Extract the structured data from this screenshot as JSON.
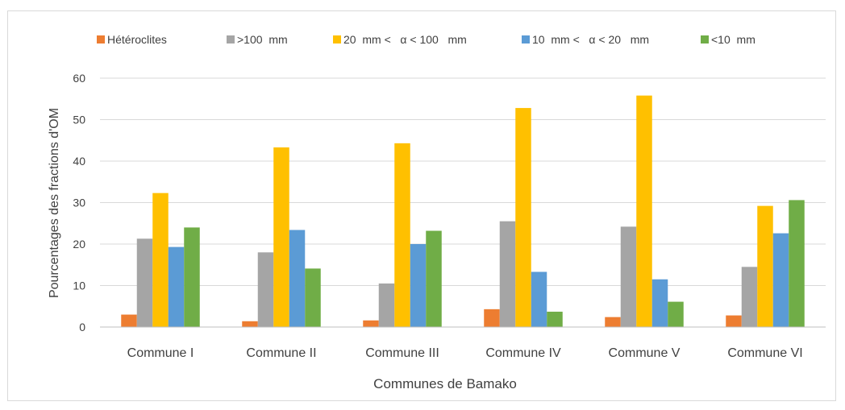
{
  "chart_data": {
    "type": "bar",
    "title": "",
    "xlabel": "Communes de Bamako",
    "ylabel": "Pourcentages des fractions d'OM",
    "ylim": [
      0,
      60
    ],
    "yticks": [
      0,
      10,
      20,
      30,
      40,
      50,
      60
    ],
    "grid": true,
    "legend_position": "top",
    "categories": [
      "Commune I",
      "Commune II",
      "Commune III",
      "Commune IV",
      "Commune V",
      "Commune VI"
    ],
    "series": [
      {
        "name": "Hétéroclites",
        "color": "#ED7D31",
        "values": [
          3.0,
          1.4,
          1.6,
          4.3,
          2.4,
          2.8
        ]
      },
      {
        "name": ">100  mm",
        "color": "#A5A5A5",
        "values": [
          21.3,
          18.0,
          10.5,
          25.5,
          24.2,
          14.5
        ]
      },
      {
        "name": "20  mm <   α < 100   mm",
        "color": "#FFC000",
        "values": [
          32.3,
          43.3,
          44.3,
          52.8,
          55.8,
          29.2
        ]
      },
      {
        "name": "10  mm <   α < 20   mm",
        "color": "#5B9BD5",
        "values": [
          19.3,
          23.4,
          20.0,
          13.3,
          11.5,
          22.6
        ]
      },
      {
        "name": "<10  mm",
        "color": "#70AD47",
        "values": [
          24.0,
          14.1,
          23.2,
          3.7,
          6.1,
          30.6
        ]
      }
    ]
  }
}
